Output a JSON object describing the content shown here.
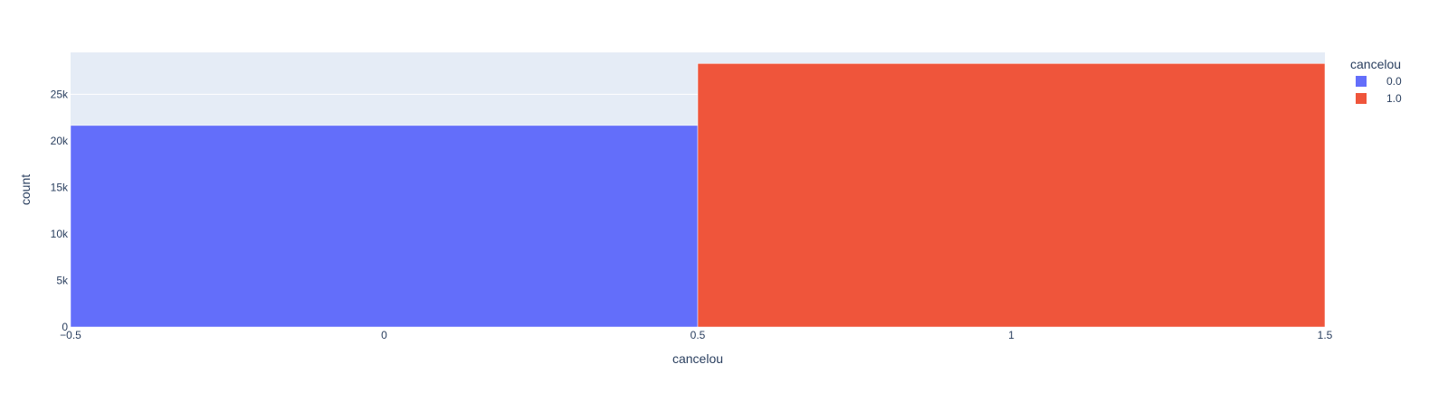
{
  "chart_data": {
    "type": "bar",
    "title": "",
    "xlabel": "cancelou",
    "ylabel": "count",
    "x_bins": [
      [
        -0.5,
        0.5
      ],
      [
        0.5,
        1.5
      ]
    ],
    "xlim": [
      -0.5,
      1.5
    ],
    "ylim": [
      0,
      29500
    ],
    "x_ticks": [
      -0.5,
      0,
      0.5,
      1,
      1.5
    ],
    "x_tick_labels": [
      "−0.5",
      "0",
      "0.5",
      "1",
      "1.5"
    ],
    "y_ticks": [
      0,
      5000,
      10000,
      15000,
      20000,
      25000
    ],
    "y_tick_labels": [
      "0",
      "5k",
      "10k",
      "15k",
      "20k",
      "25k"
    ],
    "grid": true,
    "legend": {
      "title": "cancelou",
      "placement": "top-right"
    },
    "series": [
      {
        "name": "0.0",
        "color": "#636efa",
        "bin": [
          -0.5,
          0.5
        ],
        "value": 21650
      },
      {
        "name": "1.0",
        "color": "#ef553b",
        "bin": [
          0.5,
          1.5
        ],
        "value": 28300
      }
    ],
    "plot_background": "#e5ecf6"
  }
}
